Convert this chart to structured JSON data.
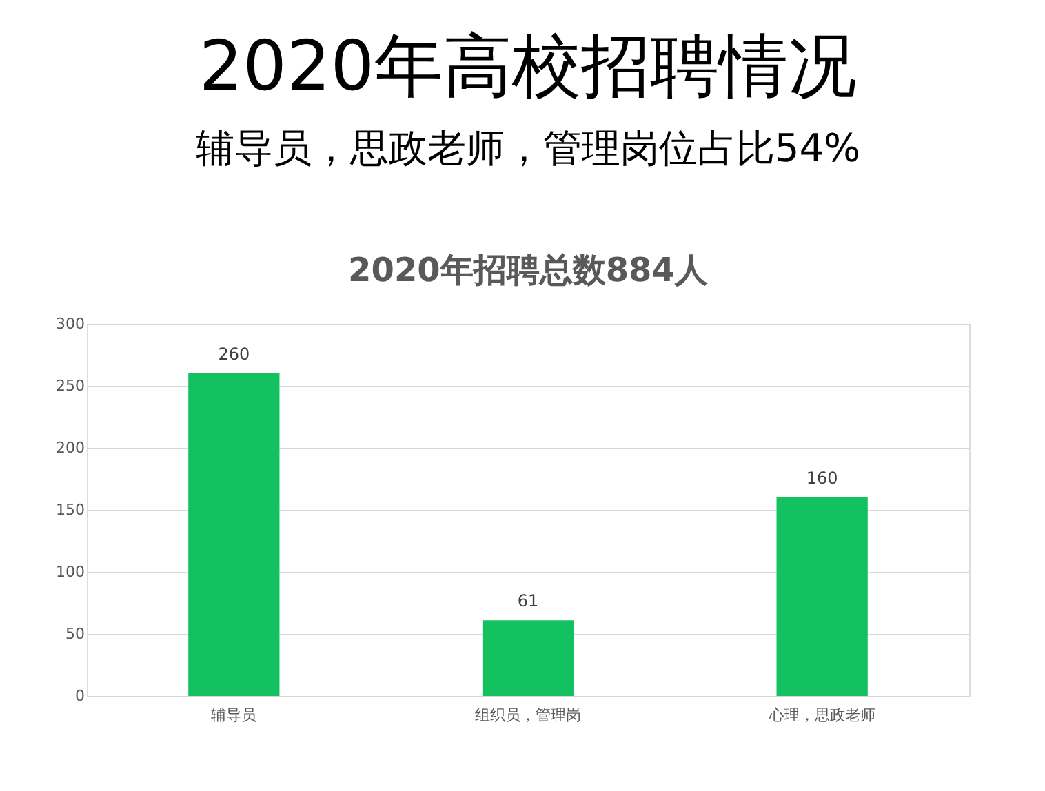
{
  "chart_data": {
    "type": "bar",
    "title": "2020年高校招聘情况",
    "subtitle": "辅导员，思政老师，管理岗位占比54%",
    "annotations": [
      "2020年招聘总数884人"
    ],
    "categories": [
      "辅导员",
      "组织员，管理岗",
      "心理，思政老师"
    ],
    "values": [
      260,
      61,
      160
    ],
    "color": "#14c160",
    "ylim": [
      0,
      300
    ],
    "yticks": [
      0,
      50,
      100,
      150,
      200,
      250,
      300
    ],
    "grid": "y",
    "data_labels": true
  }
}
